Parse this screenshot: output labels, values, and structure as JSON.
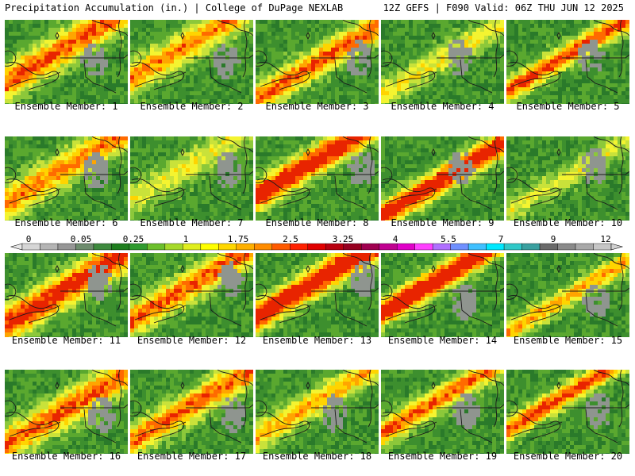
{
  "header": {
    "left": "Precipitation Accumulation (in.) | College of DuPage NEXLAB",
    "right": "12Z GEFS | F090 Valid: 06Z THU JUN 12 2025"
  },
  "members": [
    {
      "label": "Ensemble Member: 1",
      "intensity": 1.0
    },
    {
      "label": "Ensemble Member: 2",
      "intensity": 0.9
    },
    {
      "label": "Ensemble Member: 3",
      "intensity": 1.0
    },
    {
      "label": "Ensemble Member: 4",
      "intensity": 0.6
    },
    {
      "label": "Ensemble Member: 5",
      "intensity": 1.1
    },
    {
      "label": "Ensemble Member: 6",
      "intensity": 0.9
    },
    {
      "label": "Ensemble Member: 7",
      "intensity": 0.5
    },
    {
      "label": "Ensemble Member: 8",
      "intensity": 1.3
    },
    {
      "label": "Ensemble Member: 9",
      "intensity": 1.3
    },
    {
      "label": "Ensemble Member: 10",
      "intensity": 0.5
    },
    {
      "label": "Ensemble Member: 11",
      "intensity": 1.2
    },
    {
      "label": "Ensemble Member: 12",
      "intensity": 1.0
    },
    {
      "label": "Ensemble Member: 13",
      "intensity": 1.4
    },
    {
      "label": "Ensemble Member: 14",
      "intensity": 1.4
    },
    {
      "label": "Ensemble Member: 15",
      "intensity": 0.8
    },
    {
      "label": "Ensemble Member: 16",
      "intensity": 1.0
    },
    {
      "label": "Ensemble Member: 17",
      "intensity": 1.0
    },
    {
      "label": "Ensemble Member: 18",
      "intensity": 0.8
    },
    {
      "label": "Ensemble Member: 19",
      "intensity": 1.0
    },
    {
      "label": "Ensemble Member: 20",
      "intensity": 1.1
    }
  ],
  "colorbar": {
    "labels": [
      "0",
      "0.05",
      "0.25",
      "1",
      "1.75",
      "2.5",
      "3.25",
      "4",
      "5.5",
      "7",
      "9",
      "12"
    ],
    "colors": [
      "#d6d6d6",
      "#b4b4b4",
      "#969696",
      "#6e8c6e",
      "#3e8a3e",
      "#1e7e1e",
      "#2f9a2f",
      "#6cbf2c",
      "#a6d92a",
      "#e0ee1e",
      "#ffff00",
      "#ffd700",
      "#ffb000",
      "#ff8c00",
      "#ff5a00",
      "#ff2000",
      "#e00000",
      "#b80010",
      "#960020",
      "#a00050",
      "#c00090",
      "#e000c8",
      "#ff40ff",
      "#b070ff",
      "#7090ff",
      "#40c0ff",
      "#00e8ff",
      "#30c8c8",
      "#3aa0a0",
      "#6a6a6a",
      "#8a8a8a",
      "#a8a8a8",
      "#c6c6c6"
    ]
  }
}
